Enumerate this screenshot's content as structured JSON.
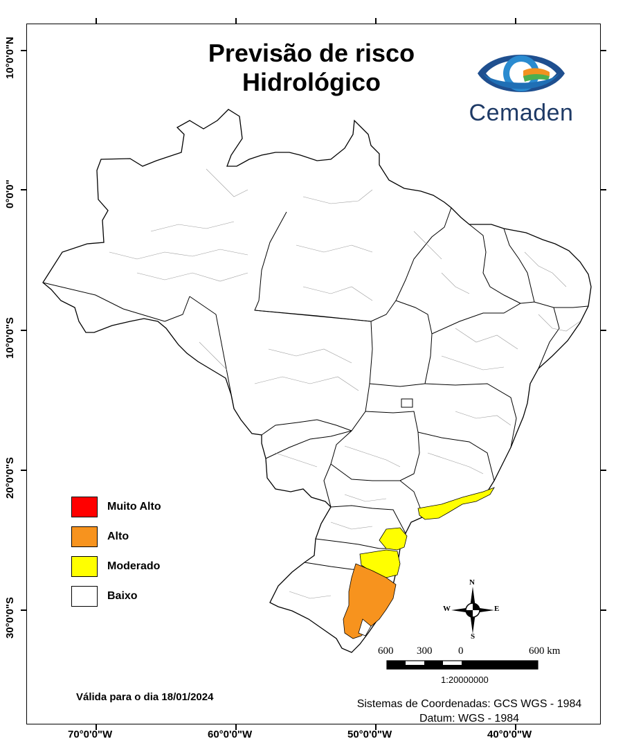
{
  "title": {
    "line1": "Previsão de risco",
    "line2": "Hidrológico"
  },
  "logo": {
    "text": "Cemaden",
    "icon": "cemaden-eye-icon"
  },
  "axes": {
    "latitude_labels": [
      "10°0'0\"N",
      "0°0'0\"",
      "10°0'0\"S",
      "20°0'0\"S",
      "30°0'0\"S"
    ],
    "longitude_labels": [
      "70°0'0\"W",
      "60°0'0\"W",
      "50°0'0\"W",
      "40°0'0\"W"
    ]
  },
  "legend": {
    "items": [
      {
        "label": "Muito Alto",
        "color": "#ff0000"
      },
      {
        "label": "Alto",
        "color": "#f7931e"
      },
      {
        "label": "Moderado",
        "color": "#ffff00"
      },
      {
        "label": "Baixo",
        "color": "#ffffff"
      }
    ]
  },
  "validity": {
    "prefix": "Válida para o dia",
    "date": "18/01/2024"
  },
  "coordinate_system": {
    "line1": "Sistemas de Coordenadas: GCS WGS - 1984",
    "line2": "Datum: WGS - 1984"
  },
  "scale_bar": {
    "labels": [
      "600",
      "300",
      "0",
      "600 km"
    ],
    "ratio": "1:20000000"
  },
  "compass": {
    "n": "N",
    "s": "S",
    "e": "E",
    "w": "W",
    "icon": "north-arrow-icon"
  },
  "colors": {
    "alto": "#f7931e",
    "moderado": "#ffff00",
    "muito_alto": "#ff0000",
    "baixo": "#ffffff"
  }
}
